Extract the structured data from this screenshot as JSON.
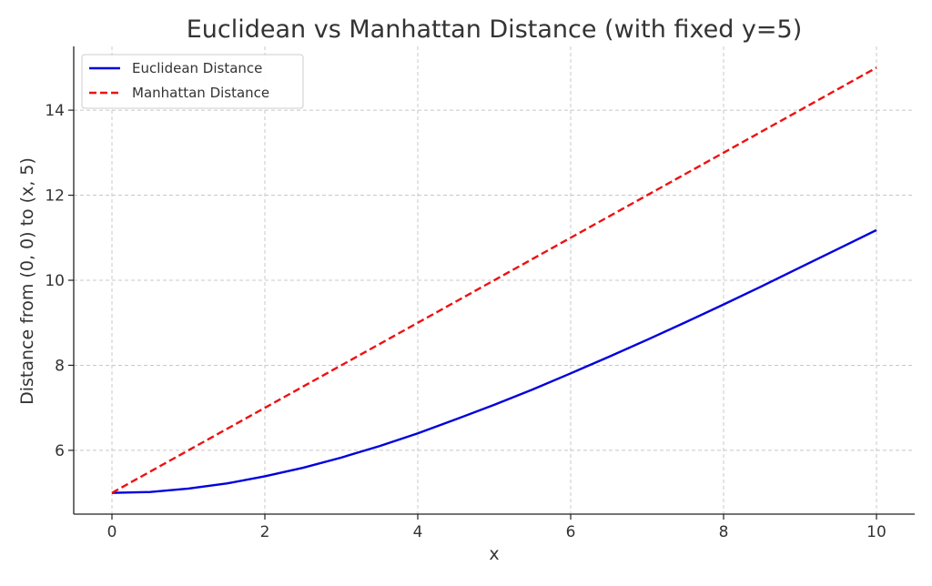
{
  "chart_data": {
    "type": "line",
    "title": "Euclidean vs Manhattan Distance (with fixed y=5)",
    "xlabel": "x",
    "ylabel": "Distance from (0, 0) to (x, 5)",
    "xlim": [
      -0.5,
      10.5
    ],
    "ylim": [
      4.5,
      15.5
    ],
    "xticks": [
      0,
      2,
      4,
      6,
      8,
      10
    ],
    "yticks": [
      6,
      8,
      10,
      12,
      14
    ],
    "grid": true,
    "legend_position": "top-left",
    "series": [
      {
        "name": "Euclidean Distance",
        "color": "#0000dd",
        "style": "solid",
        "x": [
          0,
          0.5,
          1,
          1.5,
          2,
          2.5,
          3,
          3.5,
          4,
          4.5,
          5,
          5.5,
          6,
          6.5,
          7,
          7.5,
          8,
          8.5,
          9,
          9.5,
          10
        ],
        "y": [
          5.0,
          5.02,
          5.1,
          5.22,
          5.39,
          5.59,
          5.83,
          6.1,
          6.4,
          6.73,
          7.07,
          7.43,
          7.81,
          8.2,
          8.6,
          9.01,
          9.43,
          9.86,
          10.3,
          10.74,
          11.18
        ]
      },
      {
        "name": "Manhattan Distance",
        "color": "#ee1111",
        "style": "dashed",
        "x": [
          0,
          10
        ],
        "y": [
          5,
          15
        ]
      }
    ]
  }
}
